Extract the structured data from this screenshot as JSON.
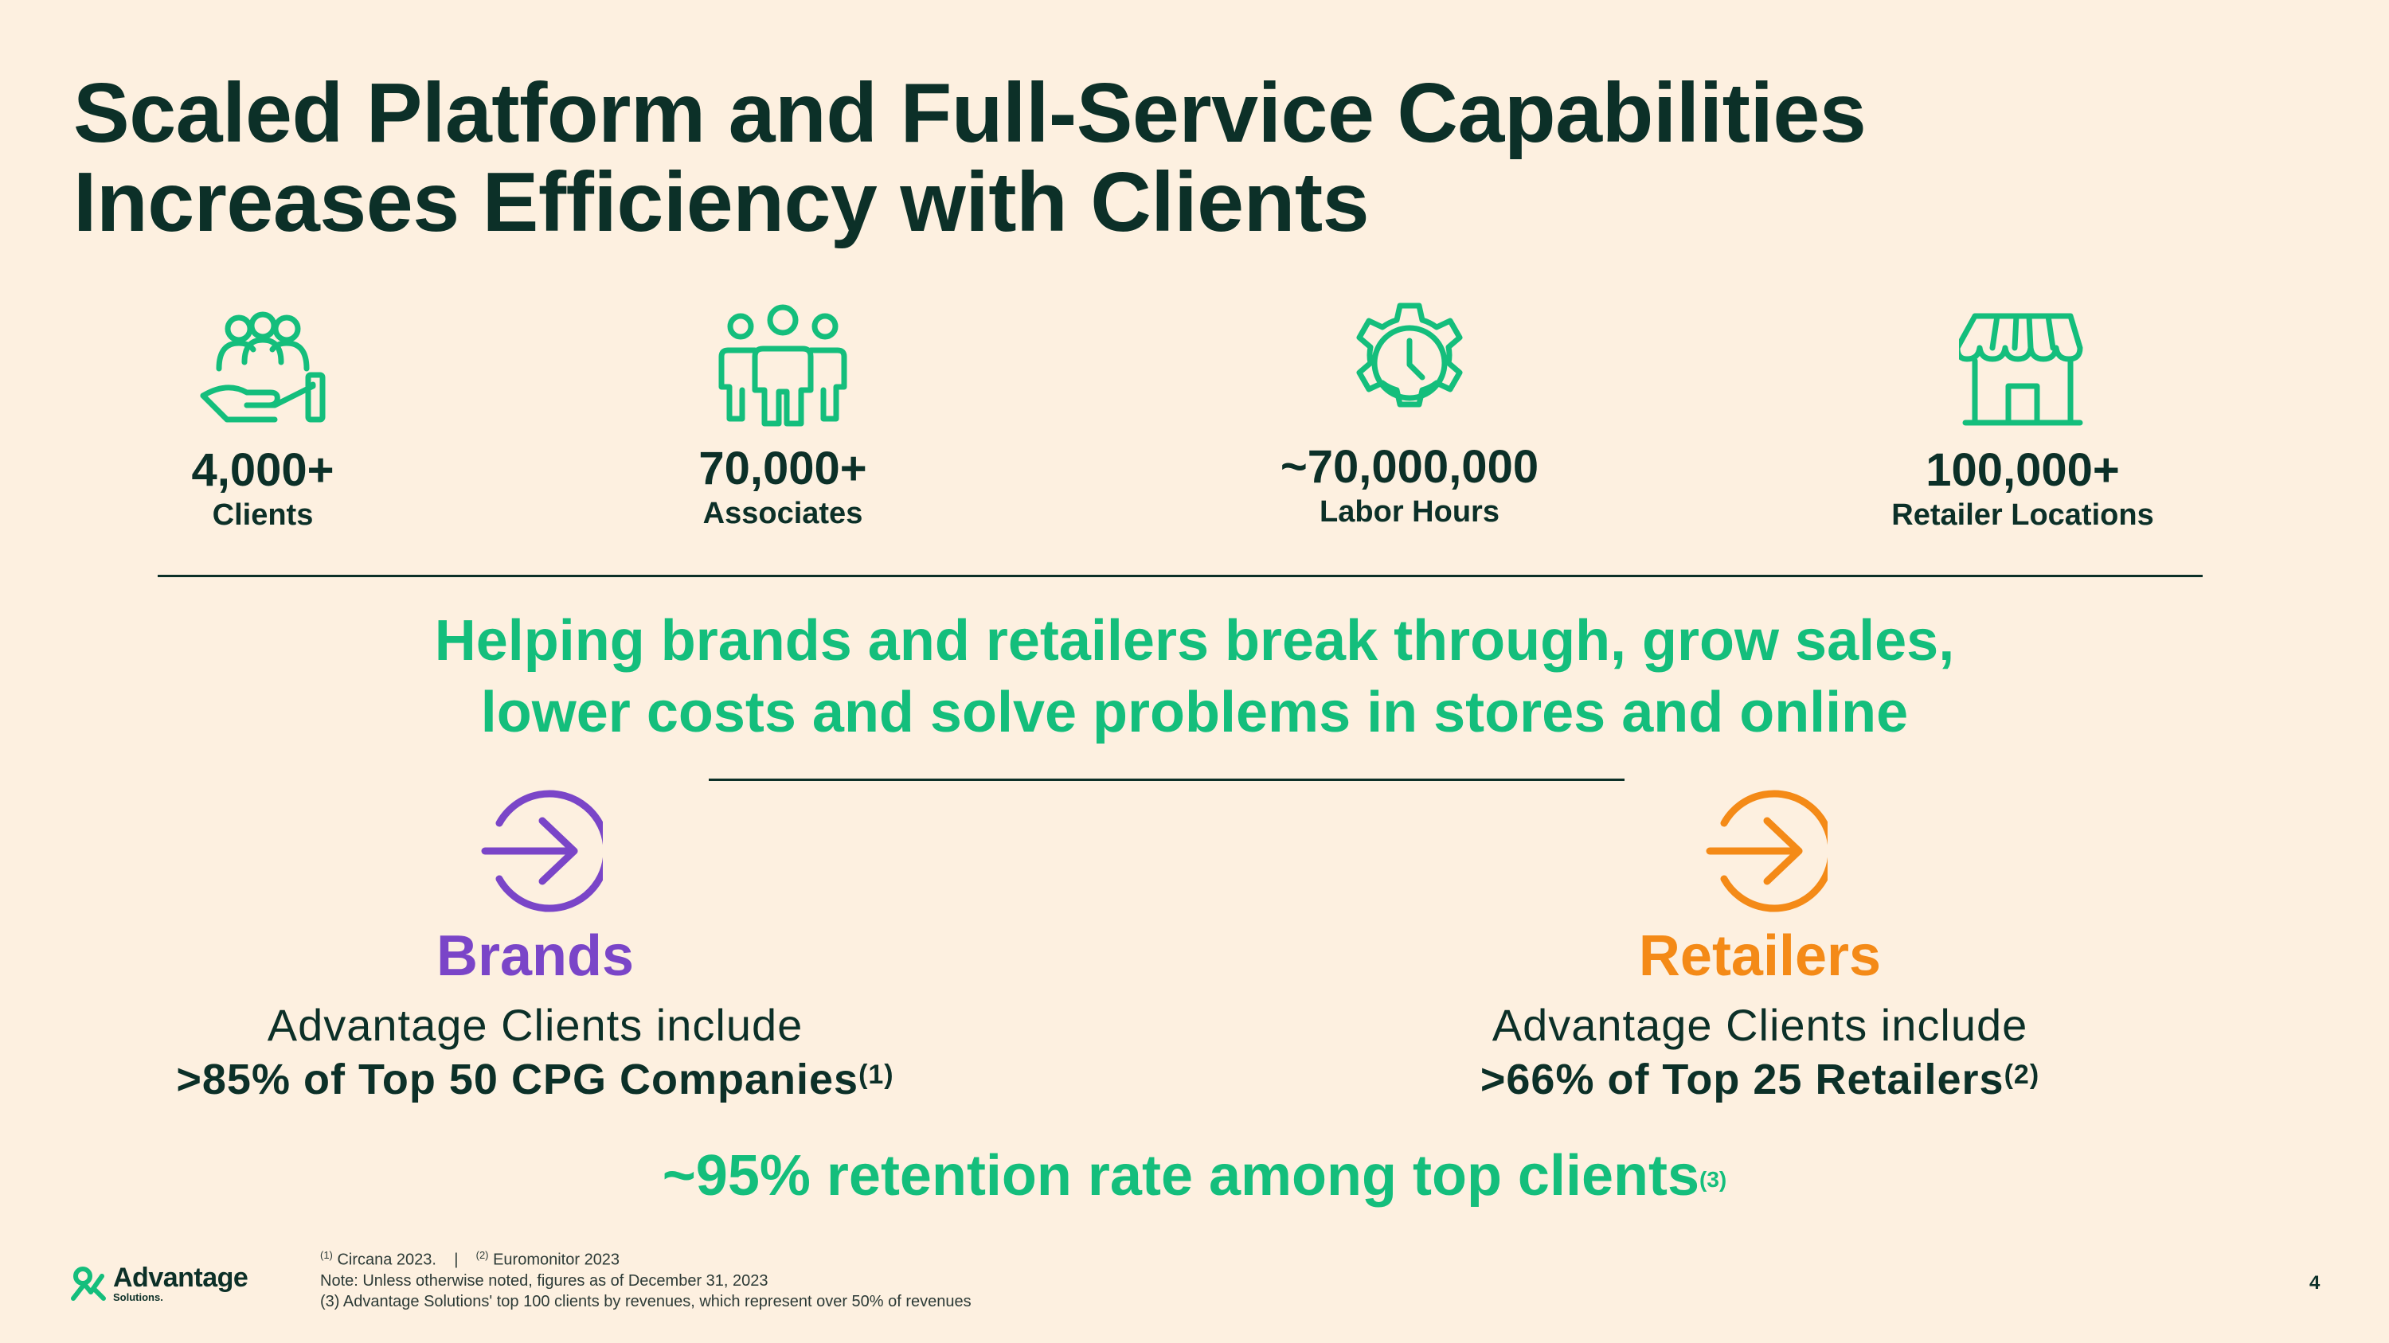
{
  "title": {
    "line1": "Scaled Platform and Full-Service Capabilities",
    "line2": "Increases Efficiency with Clients"
  },
  "stats": [
    {
      "value": "4,000+",
      "label": "Clients",
      "icon": "hand-holding-people-icon"
    },
    {
      "value": "70,000+",
      "label": "Associates",
      "icon": "people-group-icon"
    },
    {
      "value": "~70,000,000",
      "label": "Labor Hours",
      "icon": "gear-clock-icon"
    },
    {
      "value": "100,000+",
      "label": "Retailer Locations",
      "icon": "storefront-icon"
    }
  ],
  "tagline": {
    "line1": "Helping brands and retailers break through, grow sales,",
    "line2": "lower costs and solve problems in stores and online"
  },
  "brands": {
    "heading": "Brands",
    "line1": "Advantage Clients include",
    "line2": ">85% of Top 50 CPG Companies",
    "note": "(1)",
    "color": "#7a45c8"
  },
  "retailers": {
    "heading": "Retailers",
    "line1": "Advantage Clients include",
    "line2": ">66% of Top 25 Retailers",
    "note": "(2)",
    "color": "#f48a17"
  },
  "retention": {
    "text": "~95% retention rate among top clients",
    "note": "(3)"
  },
  "footnotes": {
    "fn1_mark": "(1)",
    "fn1_text": " Circana 2023.    |    ",
    "fn2_mark": "(2)",
    "fn2_text": " Euromonitor 2023",
    "note": "Note: Unless otherwise noted, figures as of December 31, 2023",
    "fn3": "(3) Advantage Solutions' top 100 clients by revenues, which represent over 50% of revenues"
  },
  "logo": {
    "name": "Advantage",
    "sub": "Solutions."
  },
  "page_number": "4",
  "colors": {
    "accent_green": "#14be7c",
    "dark_green": "#0c3028",
    "background": "#fdf0e0"
  }
}
